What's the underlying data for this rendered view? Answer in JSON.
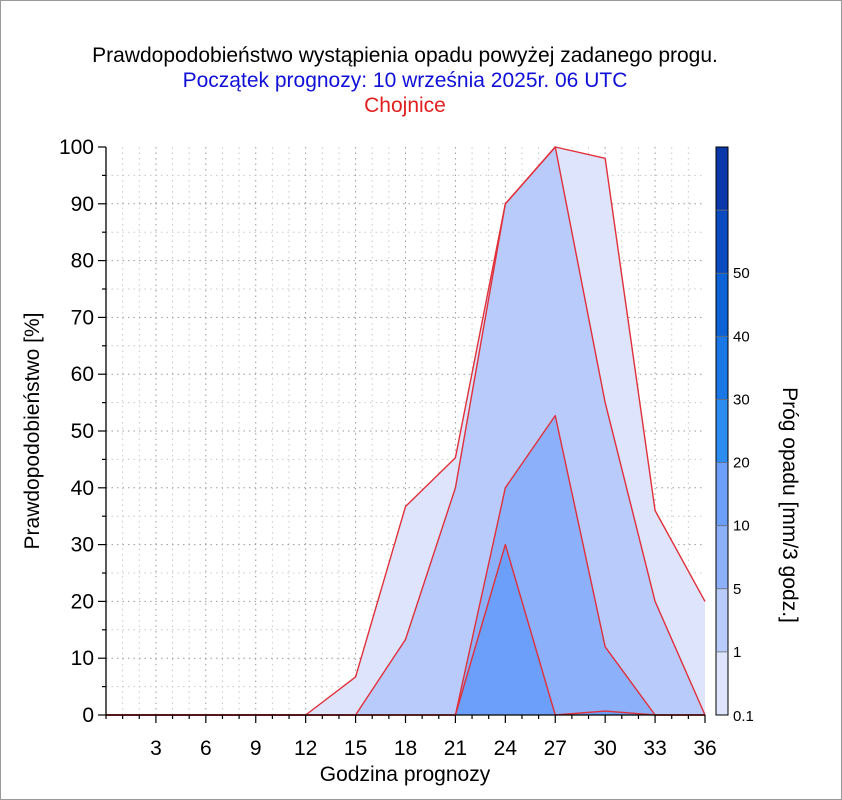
{
  "chart_data": {
    "type": "area",
    "title": "Prawdopodobieństwo wystąpienia opadu powyżej zadanego progu.",
    "subtitle": "Początek prognozy: 10 września 2025r. 06 UTC",
    "station": "Chojnice",
    "xlabel": "Godzina prognozy",
    "ylabel": "Prawdopodobieństwo [%]",
    "colorbar_label": "Próg opadu [mm/3 godz.]",
    "xlim": [
      0,
      36
    ],
    "ylim": [
      0,
      100
    ],
    "x_ticks": [
      3,
      6,
      9,
      12,
      15,
      18,
      21,
      24,
      27,
      30,
      33,
      36
    ],
    "y_ticks": [
      0,
      10,
      20,
      30,
      40,
      50,
      60,
      70,
      80,
      90,
      100
    ],
    "grid": true,
    "colorbar": {
      "tick_labels": [
        "0.1",
        "1",
        "5",
        "10",
        "20",
        "30",
        "40",
        "50"
      ],
      "levels": [
        {
          "label": "0.1",
          "color": "#dde4fb"
        },
        {
          "label": "1",
          "color": "#b9cbfa"
        },
        {
          "label": "5",
          "color": "#8db0fb"
        },
        {
          "label": "10",
          "color": "#6c9ff9"
        },
        {
          "label": "20",
          "color": "#2d8cf0"
        },
        {
          "label": "30",
          "color": "#1a78e6"
        },
        {
          "label": "40",
          "color": "#0d63d6"
        },
        {
          "label": "50",
          "color": "#0a4cc0"
        }
      ],
      "top_color": "#0a38a8"
    },
    "series": [
      {
        "name": "0.1",
        "color": "#dde4fb",
        "x": [
          0,
          3,
          6,
          9,
          12,
          15,
          18,
          21,
          24,
          27,
          30,
          33,
          36
        ],
        "values": [
          0,
          0,
          0,
          0,
          0,
          6.7,
          36.7,
          45.3,
          90,
          100,
          98,
          36,
          20
        ]
      },
      {
        "name": "1",
        "color": "#b9cbfa",
        "x": [
          0,
          3,
          6,
          9,
          12,
          15,
          18,
          21,
          24,
          27,
          30,
          33,
          36
        ],
        "values": [
          0,
          0,
          0,
          0,
          0,
          0,
          13.3,
          40,
          90,
          100,
          55,
          20,
          0
        ]
      },
      {
        "name": "5",
        "color": "#8db0fb",
        "x": [
          0,
          3,
          6,
          9,
          12,
          15,
          18,
          21,
          24,
          27,
          30,
          33,
          36
        ],
        "values": [
          0,
          0,
          0,
          0,
          0,
          0,
          0,
          0,
          40,
          52.7,
          12,
          0,
          0
        ]
      },
      {
        "name": "10",
        "color": "#6c9ff9",
        "x": [
          0,
          3,
          6,
          9,
          12,
          15,
          18,
          21,
          24,
          27,
          30,
          33,
          36
        ],
        "values": [
          0,
          0,
          0,
          0,
          0,
          0,
          0,
          0,
          30,
          0,
          0.7,
          0,
          0
        ]
      }
    ],
    "line_color": "#e0303a"
  }
}
